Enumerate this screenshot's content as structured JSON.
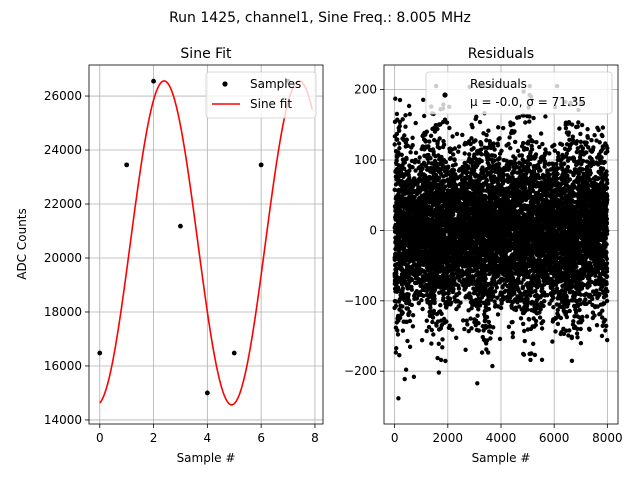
{
  "figure": {
    "suptitle": "Run 1425, channel1, Sine Freq.: 8.005 MHz"
  },
  "chart_data": [
    {
      "type": "scatter+line",
      "title": "Sine Fit",
      "xlabel": "Sample #",
      "ylabel": "ADC Counts",
      "xlim": [
        -0.4,
        8.3
      ],
      "ylim": [
        13850,
        27150
      ],
      "xticks": [
        0,
        2,
        4,
        6,
        8
      ],
      "yticks": [
        14000,
        16000,
        18000,
        20000,
        22000,
        24000,
        26000
      ],
      "grid": true,
      "legend": {
        "placement": "top-right",
        "entries": [
          {
            "label": "Samples",
            "marker": "dot",
            "color": "#000000"
          },
          {
            "label": "Sine fit",
            "marker": "line",
            "color": "#ff0000"
          }
        ]
      },
      "series": [
        {
          "name": "Samples",
          "kind": "scatter",
          "color": "#000000",
          "x": [
            0,
            1,
            2,
            3,
            4,
            5,
            6,
            7
          ],
          "y": [
            16480,
            23450,
            26550,
            21180,
            15000,
            16480,
            23450,
            26550
          ]
        },
        {
          "name": "Sine fit",
          "kind": "line",
          "color": "#ff0000",
          "model": {
            "offset": 20560,
            "amplitude": 6000,
            "cycles_per_sample": 0.1991,
            "phase_deg": -81.5,
            "x_start": 0,
            "x_end": 7.9
          }
        }
      ]
    },
    {
      "type": "scatter",
      "title": "Residuals",
      "xlabel": "Sample #",
      "ylabel": "",
      "xlim": [
        -400,
        8400
      ],
      "ylim": [
        -275,
        235
      ],
      "xticks": [
        0,
        2000,
        4000,
        6000,
        8000
      ],
      "yticks": [
        -200,
        -100,
        0,
        100,
        200
      ],
      "grid": true,
      "legend": {
        "placement": "top-right",
        "entries": [
          {
            "label": "Residuals",
            "marker": "dot",
            "color": "#000000"
          },
          {
            "label": "μ = -0.0, σ = 71.35",
            "marker": "none"
          }
        ]
      },
      "series": [
        {
          "name": "Residuals",
          "kind": "scatter",
          "color": "#000000",
          "n_points": 8000,
          "mean": -0.0,
          "sigma": 71.35,
          "beat_period_samples": 1650
        }
      ]
    }
  ]
}
